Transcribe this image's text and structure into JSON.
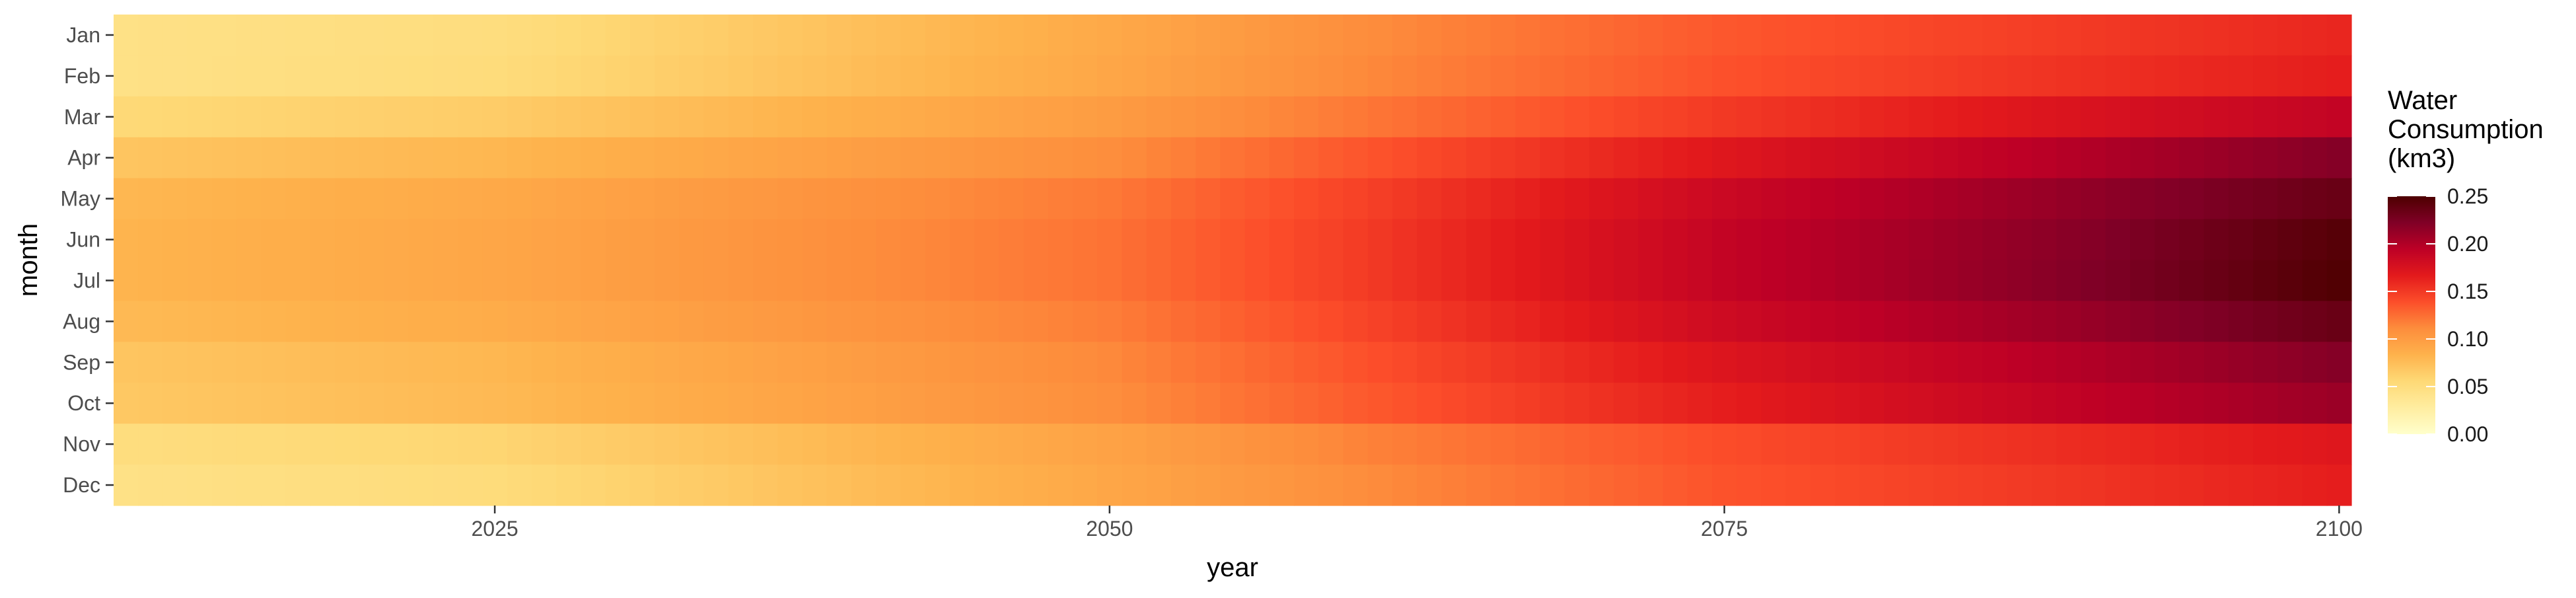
{
  "chart_data": {
    "type": "heatmap",
    "title": "",
    "xlabel": "year",
    "ylabel": "month",
    "x_range": [
      2010,
      2100
    ],
    "x_ticks": [
      2025,
      2050,
      2075,
      2100
    ],
    "x_tick_labels": [
      "2025",
      "2050",
      "2075",
      "2100"
    ],
    "y_categories": [
      "Jan",
      "Feb",
      "Mar",
      "Apr",
      "May",
      "Jun",
      "Jul",
      "Aug",
      "Sep",
      "Oct",
      "Nov",
      "Dec"
    ],
    "legend": {
      "title_lines": [
        "Water",
        "Consumption",
        "(km3)"
      ],
      "min": 0,
      "max": 0.25,
      "breaks": [
        0.0,
        0.05,
        0.1,
        0.15,
        0.2,
        0.25
      ],
      "break_labels": [
        "0.00",
        "0.05",
        "0.10",
        "0.15",
        "0.20",
        "0.25"
      ],
      "placement": "right"
    },
    "color_scale": [
      "#ffffcc",
      "#ffeda0",
      "#fed976",
      "#feb24c",
      "#fd8d3c",
      "#fc4e2a",
      "#e31a1c",
      "#bd0026",
      "#800026",
      "#4d0000"
    ],
    "anchor_years": [
      2010,
      2025,
      2050,
      2060,
      2075,
      2090,
      2100
    ],
    "monthly_values": {
      "Jan": [
        0.045,
        0.05,
        0.09,
        0.11,
        0.135,
        0.15,
        0.16
      ],
      "Feb": [
        0.045,
        0.052,
        0.092,
        0.112,
        0.138,
        0.155,
        0.165
      ],
      "Mar": [
        0.055,
        0.065,
        0.1,
        0.12,
        0.15,
        0.175,
        0.19
      ],
      "Apr": [
        0.07,
        0.08,
        0.11,
        0.135,
        0.17,
        0.2,
        0.22
      ],
      "May": [
        0.08,
        0.09,
        0.12,
        0.145,
        0.185,
        0.215,
        0.235
      ],
      "Jun": [
        0.082,
        0.092,
        0.123,
        0.148,
        0.19,
        0.22,
        0.245
      ],
      "Jul": [
        0.082,
        0.092,
        0.123,
        0.148,
        0.19,
        0.222,
        0.248
      ],
      "Aug": [
        0.078,
        0.088,
        0.118,
        0.143,
        0.183,
        0.212,
        0.235
      ],
      "Sep": [
        0.07,
        0.08,
        0.113,
        0.137,
        0.172,
        0.2,
        0.22
      ],
      "Oct": [
        0.068,
        0.078,
        0.11,
        0.133,
        0.165,
        0.193,
        0.21
      ],
      "Nov": [
        0.05,
        0.058,
        0.095,
        0.115,
        0.14,
        0.158,
        0.17
      ],
      "Dec": [
        0.045,
        0.052,
        0.092,
        0.11,
        0.137,
        0.153,
        0.165
      ]
    }
  }
}
